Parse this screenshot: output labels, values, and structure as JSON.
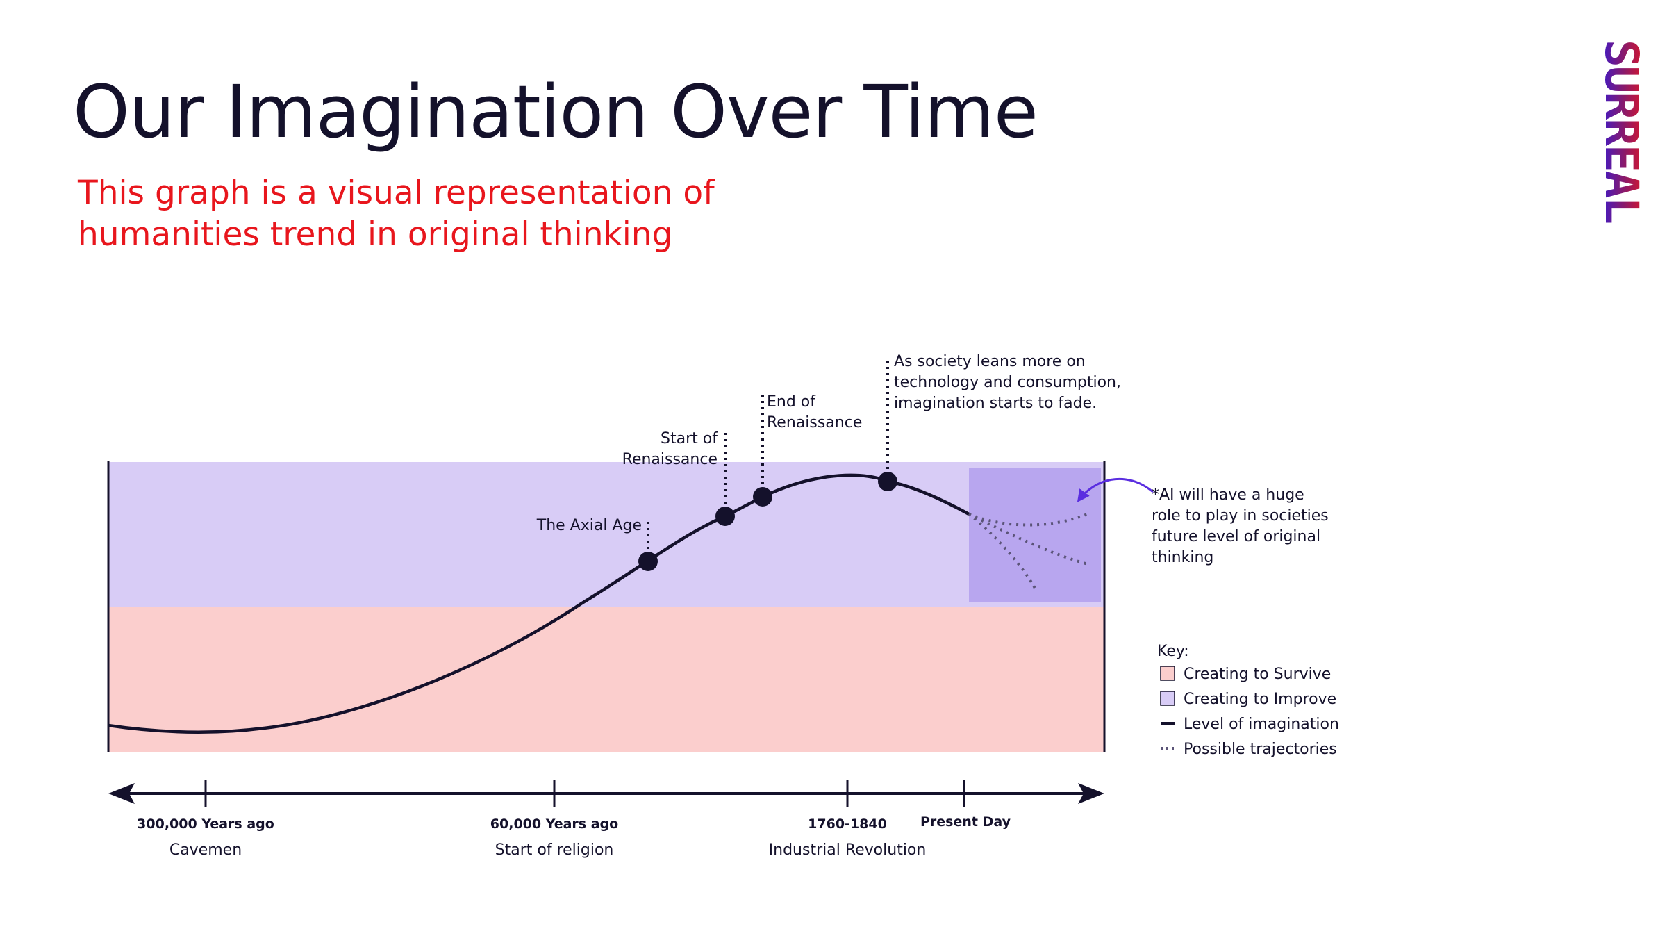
{
  "title": "Our Imagination Over Time",
  "subtitle_line1": "This graph is a visual representation of",
  "subtitle_line2": "humanities trend in original thinking",
  "logo_text": "SURREAL",
  "colors": {
    "title": "#14112b",
    "subtitle": "#e8161d",
    "survive_band": "#fbcecd",
    "improve_band": "#d8ccf6",
    "future_box": "#b8a6ef",
    "curve": "#14112b",
    "arrow": "#5a2de0"
  },
  "chart_data": {
    "type": "line",
    "title": "",
    "xlabel": "",
    "ylabel": "",
    "bands": [
      {
        "name": "Creating to Survive",
        "color": "#fbcecd"
      },
      {
        "name": "Creating to Improve",
        "color": "#d8ccf6"
      }
    ],
    "x_ticks": [
      {
        "label": "300,000 Years ago",
        "sublabel": "Cavemen"
      },
      {
        "label": "60,000 Years ago",
        "sublabel": "Start of religion"
      },
      {
        "label": "1760-1840",
        "sublabel": "Industrial Revolution"
      },
      {
        "label": "Present Day",
        "sublabel": ""
      }
    ],
    "milestones": [
      {
        "label": "The Axial Age"
      },
      {
        "label_lines": [
          "Start of",
          "Renaissance"
        ]
      },
      {
        "label_lines": [
          "End of",
          "Renaissance"
        ]
      },
      {
        "label_lines": [
          "As society leans more on",
          "technology and consumption,",
          "imagination starts to fade."
        ]
      }
    ],
    "series": [
      {
        "name": "Level of imagination",
        "style": "solid"
      },
      {
        "name": "Possible trajectories",
        "style": "dotted"
      }
    ],
    "note_lines": [
      "*AI will have a huge",
      "role to play in societies",
      "future level of original",
      "thinking"
    ],
    "legend": {
      "title": "Key:",
      "position": "right",
      "items": [
        {
          "label": "Creating to Survive",
          "kind": "swatch",
          "color": "#fbcecd"
        },
        {
          "label": "Creating to Improve",
          "kind": "swatch",
          "color": "#d8ccf6"
        },
        {
          "label": "Level of imagination",
          "kind": "line"
        },
        {
          "label": "Possible trajectories",
          "kind": "dotted"
        }
      ]
    }
  }
}
